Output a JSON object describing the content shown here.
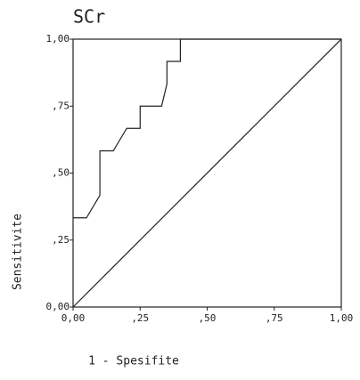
{
  "chart_data": {
    "type": "line",
    "title": "SCr",
    "xlabel": "1 - Spesifite",
    "ylabel": "Sensitivite",
    "xlim": [
      0,
      1
    ],
    "ylim": [
      0,
      1
    ],
    "xticks": [
      {
        "value": 0,
        "label": "0,00"
      },
      {
        "value": 0.25,
        "label": ",25"
      },
      {
        "value": 0.5,
        "label": ",50"
      },
      {
        "value": 0.75,
        "label": ",75"
      },
      {
        "value": 1,
        "label": "1,00"
      }
    ],
    "yticks": [
      {
        "value": 0,
        "label": "0,00"
      },
      {
        "value": 0.25,
        "label": ",25"
      },
      {
        "value": 0.5,
        "label": ",50"
      },
      {
        "value": 0.75,
        "label": ",75"
      },
      {
        "value": 1,
        "label": "1,00"
      }
    ],
    "series": [
      {
        "color": "#222222",
        "x": [
          0,
          0.05,
          0.1,
          0.1,
          0.15,
          0.2,
          0.25,
          0.25,
          0.33,
          0.35,
          0.35,
          0.4,
          0.4,
          1
        ],
        "values": [
          0.333,
          0.333,
          0.417,
          0.583,
          0.583,
          0.667,
          0.667,
          0.75,
          0.75,
          0.833,
          0.917,
          0.917,
          1,
          1
        ]
      },
      {
        "color": "#222222",
        "x": [
          0,
          1
        ],
        "values": [
          0,
          1
        ]
      }
    ]
  }
}
